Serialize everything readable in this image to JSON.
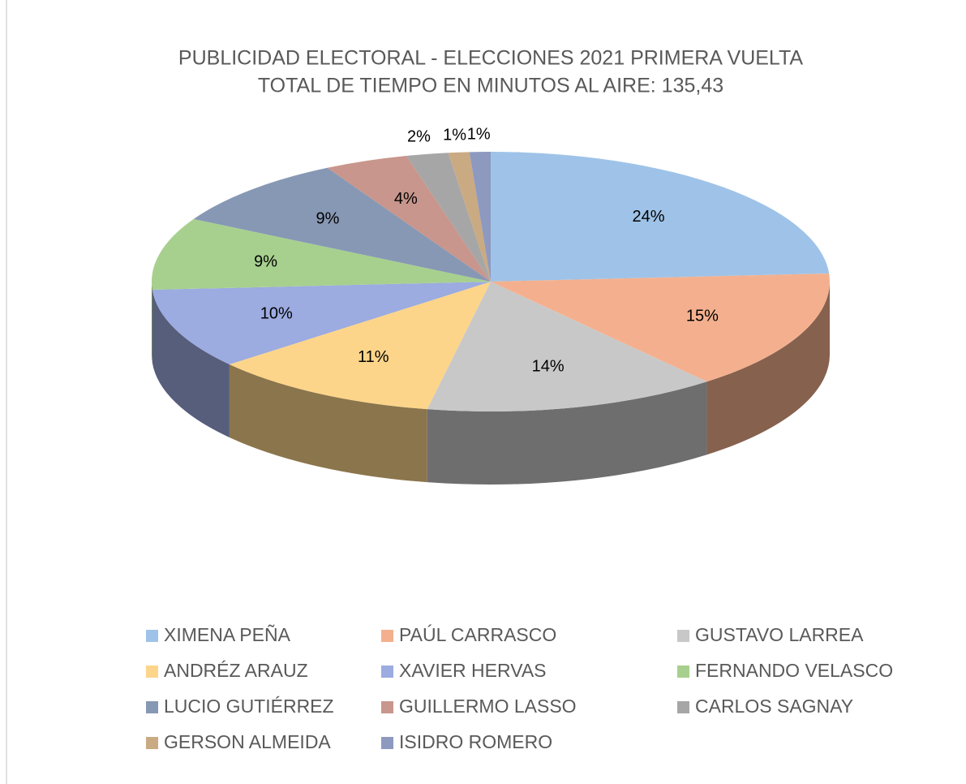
{
  "chart_data": {
    "type": "pie3d",
    "title": "PUBLICIDAD ELECTORAL  - ELECCIONES 2021 PRIMERA VUELTA",
    "subtitle": "TOTAL DE TIEMPO EN MINUTOS AL AIRE: 135,43",
    "categories": [
      "XIMENA PEÑA",
      "PAÚL CARRASCO",
      "GUSTAVO LARREA",
      "ANDRÉZ ARAUZ",
      "XAVIER HERVAS",
      "FERNANDO VELASCO",
      "LUCIO GUTIÉRREZ",
      "GUILLERMO LASSO",
      "CARLOS SAGNAY",
      "GERSON ALMEIDA",
      "ISIDRO ROMERO"
    ],
    "values": [
      24,
      15,
      14,
      11,
      10,
      9,
      9,
      4,
      2,
      1,
      1
    ],
    "value_labels": [
      "24%",
      "15%",
      "14%",
      "11%",
      "10%",
      "9%",
      "9%",
      "4%",
      "2%",
      "1%",
      "1%"
    ],
    "colors": [
      "#9fc3e8",
      "#f4b08e",
      "#c8c8c8",
      "#fdd58a",
      "#9cabe0",
      "#a7d08e",
      "#8798b4",
      "#c8968c",
      "#a6a6a6",
      "#c9aa82",
      "#8e99c0"
    ],
    "legend": "bottom"
  }
}
